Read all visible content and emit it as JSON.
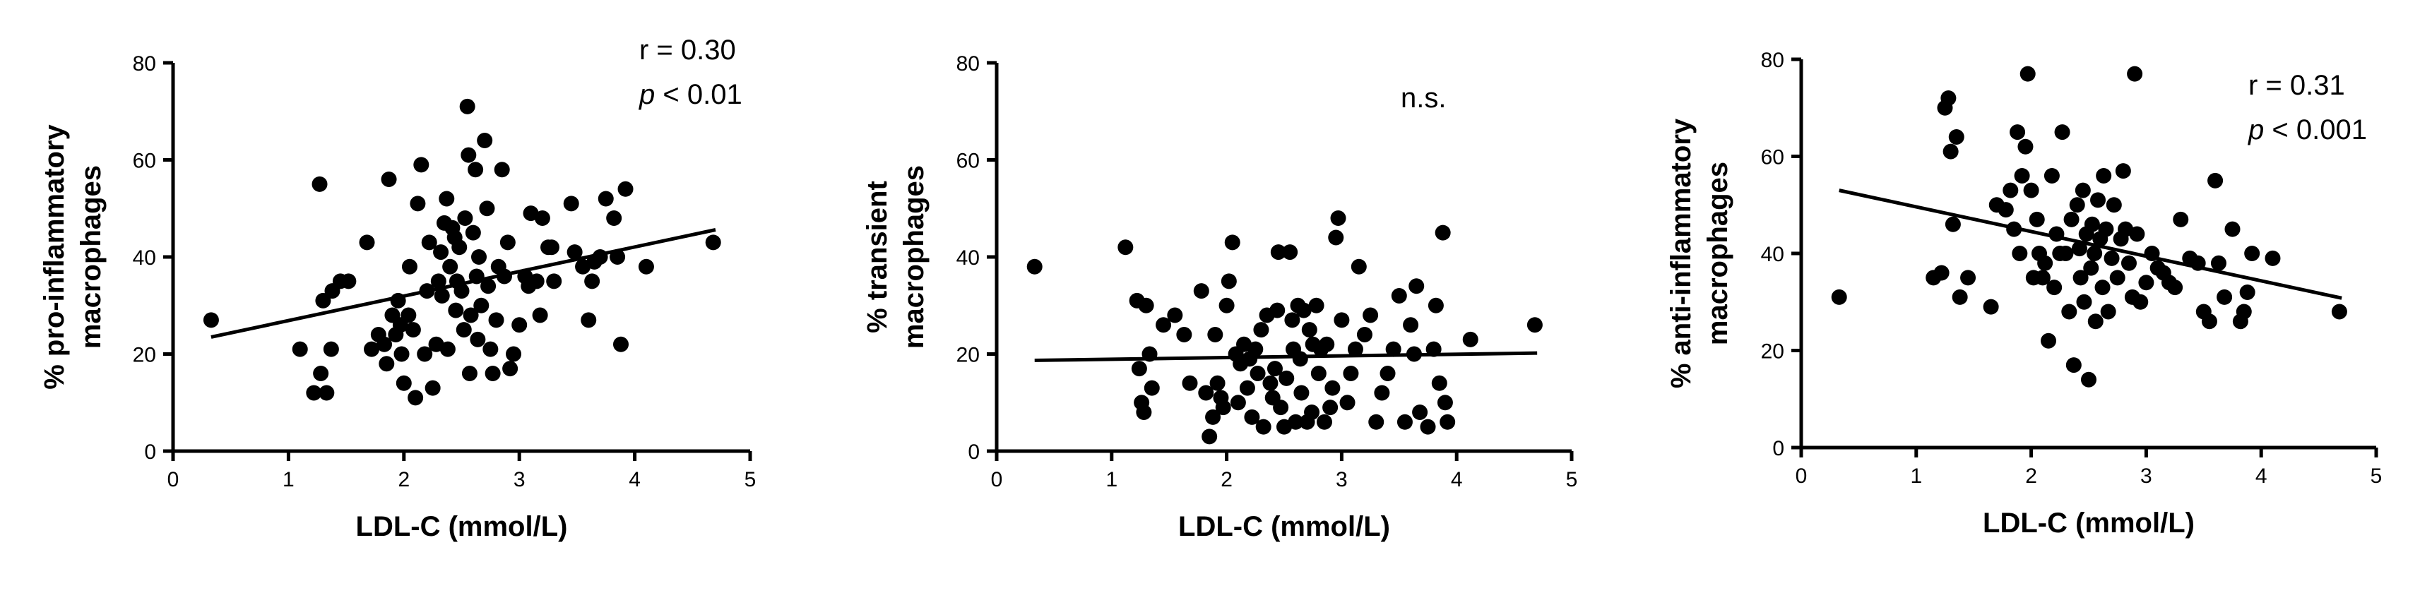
{
  "chart_data": [
    {
      "type": "scatter",
      "xlabel": "LDL-C (mmol/L)",
      "ylabel_lines": [
        "% pro-inflammatory",
        "macrophages"
      ],
      "annotation_lines": [
        "r = 0.30",
        "p < 0.01"
      ],
      "xlim": [
        0,
        5
      ],
      "ylim": [
        0,
        80
      ],
      "xticks": [
        "0",
        "1",
        "2",
        "3",
        "4",
        "5"
      ],
      "yticks": [
        "0",
        "20",
        "40",
        "60",
        "80"
      ],
      "trendline": [
        [
          0.33,
          23.5
        ],
        [
          4.7,
          45.6
        ]
      ],
      "points": [
        [
          0.33,
          27
        ],
        [
          1.1,
          21
        ],
        [
          1.22,
          12
        ],
        [
          1.27,
          55
        ],
        [
          1.28,
          16
        ],
        [
          1.3,
          31
        ],
        [
          1.33,
          12
        ],
        [
          1.37,
          21
        ],
        [
          1.38,
          33
        ],
        [
          1.45,
          35
        ],
        [
          1.52,
          35
        ],
        [
          1.68,
          43
        ],
        [
          1.72,
          21
        ],
        [
          1.78,
          24
        ],
        [
          1.83,
          22
        ],
        [
          1.85,
          18
        ],
        [
          1.87,
          56
        ],
        [
          1.9,
          28
        ],
        [
          1.93,
          24
        ],
        [
          1.95,
          31
        ],
        [
          1.97,
          26
        ],
        [
          1.98,
          20
        ],
        [
          2.0,
          14
        ],
        [
          2.04,
          28
        ],
        [
          2.05,
          38
        ],
        [
          2.08,
          25
        ],
        [
          2.1,
          11
        ],
        [
          2.12,
          51
        ],
        [
          2.15,
          59
        ],
        [
          2.18,
          20
        ],
        [
          2.2,
          33
        ],
        [
          2.22,
          43
        ],
        [
          2.25,
          13
        ],
        [
          2.28,
          22
        ],
        [
          2.3,
          35
        ],
        [
          2.32,
          41
        ],
        [
          2.33,
          32
        ],
        [
          2.35,
          47
        ],
        [
          2.37,
          52
        ],
        [
          2.38,
          21
        ],
        [
          2.4,
          38
        ],
        [
          2.42,
          46
        ],
        [
          2.44,
          44
        ],
        [
          2.45,
          29
        ],
        [
          2.46,
          35
        ],
        [
          2.48,
          42
        ],
        [
          2.5,
          33
        ],
        [
          2.52,
          25
        ],
        [
          2.53,
          48
        ],
        [
          2.55,
          71
        ],
        [
          2.56,
          61
        ],
        [
          2.57,
          16
        ],
        [
          2.58,
          28
        ],
        [
          2.6,
          45
        ],
        [
          2.62,
          58
        ],
        [
          2.63,
          36
        ],
        [
          2.64,
          23
        ],
        [
          2.65,
          40
        ],
        [
          2.67,
          30
        ],
        [
          2.7,
          64
        ],
        [
          2.72,
          50
        ],
        [
          2.73,
          34
        ],
        [
          2.75,
          21
        ],
        [
          2.77,
          16
        ],
        [
          2.8,
          27
        ],
        [
          2.82,
          38
        ],
        [
          2.85,
          58
        ],
        [
          2.87,
          36
        ],
        [
          2.9,
          43
        ],
        [
          2.92,
          17
        ],
        [
          2.95,
          20
        ],
        [
          3.0,
          26
        ],
        [
          3.05,
          36
        ],
        [
          3.08,
          34
        ],
        [
          3.1,
          49
        ],
        [
          3.15,
          35
        ],
        [
          3.18,
          28
        ],
        [
          3.2,
          48
        ],
        [
          3.25,
          42
        ],
        [
          3.28,
          42
        ],
        [
          3.3,
          35
        ],
        [
          3.45,
          51
        ],
        [
          3.48,
          41
        ],
        [
          3.55,
          38
        ],
        [
          3.6,
          27
        ],
        [
          3.63,
          35
        ],
        [
          3.65,
          39
        ],
        [
          3.7,
          40
        ],
        [
          3.75,
          52
        ],
        [
          3.82,
          48
        ],
        [
          3.85,
          40
        ],
        [
          3.88,
          22
        ],
        [
          3.92,
          54
        ],
        [
          4.1,
          38
        ],
        [
          4.68,
          43
        ]
      ]
    },
    {
      "type": "scatter",
      "xlabel": "LDL-C (mmol/L)",
      "ylabel_lines": [
        "% transient",
        "macrophages"
      ],
      "annotation_lines": [
        "n.s."
      ],
      "xlim": [
        0,
        5
      ],
      "ylim": [
        0,
        80
      ],
      "xticks": [
        "0",
        "1",
        "2",
        "3",
        "4",
        "5"
      ],
      "yticks": [
        "0",
        "20",
        "40",
        "60",
        "80"
      ],
      "trendline": [
        [
          0.33,
          18.7
        ],
        [
          4.7,
          20.2
        ]
      ],
      "points": [
        [
          0.33,
          38
        ],
        [
          1.12,
          42
        ],
        [
          1.22,
          31
        ],
        [
          1.24,
          17
        ],
        [
          1.26,
          10
        ],
        [
          1.28,
          8
        ],
        [
          1.3,
          30
        ],
        [
          1.33,
          20
        ],
        [
          1.35,
          13
        ],
        [
          1.45,
          26
        ],
        [
          1.55,
          28
        ],
        [
          1.63,
          24
        ],
        [
          1.68,
          14
        ],
        [
          1.78,
          33
        ],
        [
          1.82,
          12
        ],
        [
          1.85,
          3
        ],
        [
          1.88,
          7
        ],
        [
          1.9,
          24
        ],
        [
          1.92,
          14
        ],
        [
          1.95,
          11
        ],
        [
          1.97,
          9
        ],
        [
          2.0,
          30
        ],
        [
          2.02,
          35
        ],
        [
          2.05,
          43
        ],
        [
          2.08,
          20
        ],
        [
          2.1,
          10
        ],
        [
          2.12,
          18
        ],
        [
          2.15,
          22
        ],
        [
          2.18,
          13
        ],
        [
          2.2,
          19
        ],
        [
          2.22,
          7
        ],
        [
          2.25,
          21
        ],
        [
          2.27,
          16
        ],
        [
          2.3,
          25
        ],
        [
          2.32,
          5
        ],
        [
          2.35,
          28
        ],
        [
          2.38,
          14
        ],
        [
          2.4,
          11
        ],
        [
          2.42,
          17
        ],
        [
          2.44,
          29
        ],
        [
          2.45,
          41
        ],
        [
          2.47,
          9
        ],
        [
          2.5,
          5
        ],
        [
          2.52,
          15
        ],
        [
          2.55,
          41
        ],
        [
          2.57,
          27
        ],
        [
          2.58,
          21
        ],
        [
          2.6,
          6
        ],
        [
          2.62,
          30
        ],
        [
          2.64,
          19
        ],
        [
          2.65,
          12
        ],
        [
          2.67,
          29
        ],
        [
          2.7,
          6
        ],
        [
          2.72,
          25
        ],
        [
          2.74,
          8
        ],
        [
          2.75,
          22
        ],
        [
          2.78,
          30
        ],
        [
          2.8,
          16
        ],
        [
          2.82,
          21
        ],
        [
          2.85,
          6
        ],
        [
          2.87,
          22
        ],
        [
          2.9,
          9
        ],
        [
          2.92,
          13
        ],
        [
          2.95,
          44
        ],
        [
          2.97,
          48
        ],
        [
          3.0,
          27
        ],
        [
          3.05,
          10
        ],
        [
          3.08,
          16
        ],
        [
          3.12,
          21
        ],
        [
          3.15,
          38
        ],
        [
          3.2,
          24
        ],
        [
          3.25,
          28
        ],
        [
          3.3,
          6
        ],
        [
          3.35,
          12
        ],
        [
          3.4,
          16
        ],
        [
          3.45,
          21
        ],
        [
          3.5,
          32
        ],
        [
          3.55,
          6
        ],
        [
          3.6,
          26
        ],
        [
          3.63,
          20
        ],
        [
          3.65,
          34
        ],
        [
          3.68,
          8
        ],
        [
          3.75,
          5
        ],
        [
          3.8,
          21
        ],
        [
          3.82,
          30
        ],
        [
          3.85,
          14
        ],
        [
          3.88,
          45
        ],
        [
          3.9,
          10
        ],
        [
          3.92,
          6
        ],
        [
          4.12,
          23
        ],
        [
          4.68,
          26
        ]
      ]
    },
    {
      "type": "scatter",
      "xlabel": "LDL-C (mmol/L)",
      "ylabel_lines": [
        "% anti-inflammatory",
        "macrophages"
      ],
      "annotation_lines": [
        "r = 0.31",
        "p < 0.001"
      ],
      "xlim": [
        0,
        5
      ],
      "ylim": [
        0,
        80
      ],
      "xticks": [
        "0",
        "1",
        "2",
        "3",
        "4",
        "5"
      ],
      "yticks": [
        "0",
        "20",
        "40",
        "60",
        "80"
      ],
      "trendline": [
        [
          0.33,
          53.0
        ],
        [
          4.7,
          30.8
        ]
      ],
      "points": [
        [
          0.33,
          31
        ],
        [
          1.15,
          35
        ],
        [
          1.22,
          36
        ],
        [
          1.25,
          70
        ],
        [
          1.28,
          72
        ],
        [
          1.3,
          61
        ],
        [
          1.32,
          46
        ],
        [
          1.35,
          64
        ],
        [
          1.38,
          31
        ],
        [
          1.45,
          35
        ],
        [
          1.65,
          29
        ],
        [
          1.7,
          50
        ],
        [
          1.78,
          49
        ],
        [
          1.82,
          53
        ],
        [
          1.85,
          45
        ],
        [
          1.88,
          65
        ],
        [
          1.9,
          40
        ],
        [
          1.92,
          56
        ],
        [
          1.95,
          62
        ],
        [
          1.97,
          77
        ],
        [
          2.0,
          53
        ],
        [
          2.02,
          35
        ],
        [
          2.05,
          47
        ],
        [
          2.07,
          40
        ],
        [
          2.1,
          35
        ],
        [
          2.12,
          38
        ],
        [
          2.15,
          22
        ],
        [
          2.18,
          56
        ],
        [
          2.2,
          33
        ],
        [
          2.22,
          44
        ],
        [
          2.25,
          40
        ],
        [
          2.27,
          65
        ],
        [
          2.3,
          40
        ],
        [
          2.33,
          28
        ],
        [
          2.35,
          47
        ],
        [
          2.37,
          17
        ],
        [
          2.4,
          50
        ],
        [
          2.42,
          41
        ],
        [
          2.43,
          35
        ],
        [
          2.45,
          53
        ],
        [
          2.46,
          30
        ],
        [
          2.48,
          44
        ],
        [
          2.5,
          14
        ],
        [
          2.52,
          37
        ],
        [
          2.53,
          46
        ],
        [
          2.55,
          40
        ],
        [
          2.56,
          26
        ],
        [
          2.58,
          51
        ],
        [
          2.6,
          43
        ],
        [
          2.62,
          33
        ],
        [
          2.63,
          56
        ],
        [
          2.65,
          45
        ],
        [
          2.67,
          28
        ],
        [
          2.7,
          39
        ],
        [
          2.72,
          50
        ],
        [
          2.75,
          35
        ],
        [
          2.78,
          43
        ],
        [
          2.8,
          57
        ],
        [
          2.82,
          45
        ],
        [
          2.85,
          38
        ],
        [
          2.88,
          31
        ],
        [
          2.9,
          77
        ],
        [
          2.92,
          44
        ],
        [
          2.95,
          30
        ],
        [
          3.0,
          34
        ],
        [
          3.05,
          40
        ],
        [
          3.1,
          37
        ],
        [
          3.15,
          36
        ],
        [
          3.2,
          34
        ],
        [
          3.25,
          33
        ],
        [
          3.3,
          47
        ],
        [
          3.38,
          39
        ],
        [
          3.45,
          38
        ],
        [
          3.5,
          28
        ],
        [
          3.55,
          26
        ],
        [
          3.6,
          55
        ],
        [
          3.63,
          38
        ],
        [
          3.68,
          31
        ],
        [
          3.75,
          45
        ],
        [
          3.82,
          26
        ],
        [
          3.85,
          28
        ],
        [
          3.88,
          32
        ],
        [
          3.92,
          40
        ],
        [
          4.1,
          39
        ],
        [
          4.68,
          28
        ]
      ]
    }
  ]
}
